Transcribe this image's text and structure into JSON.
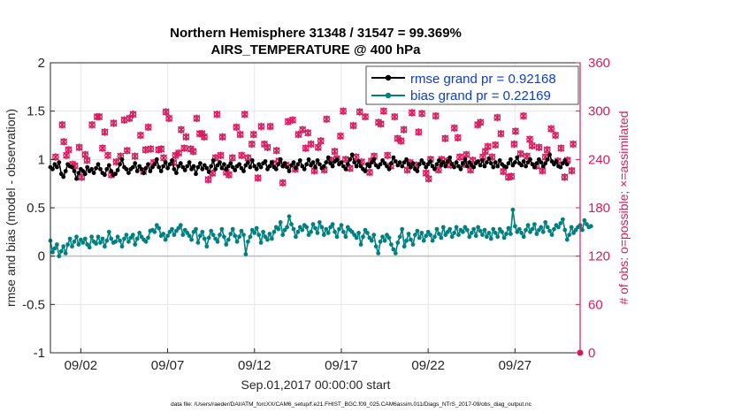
{
  "chart_data": {
    "type": "line",
    "title_line1": "Northern Hemisphere 31348 / 31547 = 99.369%",
    "title_line2": "AIRS_TEMPERATURE @ 400 hPa",
    "ylabel_left": "rmse and bias (model - observation)",
    "ylabel_right": "# of obs: o=possible; ×=assimilated",
    "xlabel": "Sep.01,2017 00:00:00 start",
    "footer": "data file: /Users/raeder/DAI/ATM_forcXX/CAM6_setup/f.e21.FHIST_BGC.f09_025.CAM6assim.011/Diags_NTrS_2017-09/obs_diag_output.nc",
    "ylim_left": [
      -1,
      2
    ],
    "ylim_right": [
      0,
      360
    ],
    "xlim": [
      0.25,
      30.75
    ],
    "left_ticks": [
      "-1",
      "-0.5",
      "0",
      "0.5",
      "1",
      "1.5",
      "2"
    ],
    "right_ticks": [
      "0",
      "60",
      "120",
      "180",
      "240",
      "300",
      "360"
    ],
    "x_ticks": [
      {
        "x": 2,
        "label": "09/02"
      },
      {
        "x": 7,
        "label": "09/07"
      },
      {
        "x": 12,
        "label": "09/12"
      },
      {
        "x": 17,
        "label": "09/17"
      },
      {
        "x": 22,
        "label": "09/22"
      },
      {
        "x": 27,
        "label": "09/27"
      }
    ],
    "legend": [
      {
        "label": "rmse grand pr = 0.92168",
        "color": "#000000"
      },
      {
        "label": "bias grand pr = 0.22169",
        "color": "#008080"
      }
    ],
    "colors": {
      "rmse": "#000000",
      "bias": "#008080",
      "obs": "#d81b60",
      "zero": "#bbbbbb",
      "grid": "#e6e6e6",
      "legend_text": "#0a3cdc"
    },
    "t_start": 0.25,
    "t_step": 0.125,
    "rmse": [
      0.92,
      0.9,
      0.95,
      0.92,
      0.97,
      0.85,
      0.82,
      0.88,
      0.95,
      0.93,
      0.92,
      0.88,
      0.8,
      0.86,
      0.9,
      0.88,
      0.85,
      0.92,
      0.88,
      0.9,
      0.86,
      0.91,
      0.95,
      0.9,
      0.86,
      0.84,
      0.9,
      0.94,
      0.88,
      0.84,
      0.85,
      0.89,
      0.95,
      1.0,
      0.92,
      0.9,
      0.86,
      0.9,
      0.92,
      0.96,
      0.88,
      0.93,
      0.9,
      0.86,
      0.91,
      0.95,
      0.88,
      0.92,
      0.95,
      1.0,
      0.92,
      0.88,
      0.93,
      0.97,
      0.91,
      0.95,
      0.99,
      0.9,
      0.86,
      0.93,
      0.96,
      0.92,
      0.89,
      0.93,
      0.97,
      0.9,
      0.93,
      0.85,
      0.92,
      0.96,
      0.9,
      0.94,
      0.91,
      0.87,
      0.93,
      0.99,
      0.9,
      0.94,
      0.97,
      0.91,
      0.95,
      0.9,
      0.93,
      0.96,
      0.92,
      0.89,
      0.93,
      0.95,
      0.91,
      0.88,
      0.94,
      0.97,
      0.92,
      0.99,
      0.93,
      0.9,
      0.95,
      0.92,
      0.96,
      0.98,
      0.9,
      0.93,
      0.97,
      0.92,
      0.9,
      0.95,
      1.0,
      0.93,
      0.96,
      0.92,
      0.88,
      0.94,
      0.97,
      0.91,
      0.95,
      0.99,
      0.93,
      0.9,
      0.95,
      1.0,
      0.94,
      0.97,
      0.92,
      0.99,
      0.95,
      0.91,
      0.93,
      0.97,
      1.02,
      0.96,
      0.93,
      0.98,
      1.0,
      0.95,
      0.97,
      0.93,
      0.9,
      0.95,
      1.0,
      1.05,
      0.97,
      0.93,
      0.98,
      0.93,
      0.9,
      0.88,
      0.95,
      0.93,
      0.97,
      1.0,
      0.94,
      0.92,
      0.95,
      0.99,
      0.96,
      0.93,
      0.9,
      0.96,
      1.02,
      0.98,
      0.94,
      0.97,
      0.93,
      0.97,
      1.0,
      0.95,
      0.92,
      0.96,
      0.9,
      0.88,
      0.95,
      0.99,
      0.96,
      0.92,
      0.95,
      0.98,
      0.93,
      0.9,
      0.95,
      0.99,
      0.94,
      0.97,
      0.93,
      0.98,
      1.02,
      0.95,
      0.92,
      0.97,
      0.93,
      0.9,
      0.96,
      1.0,
      0.93,
      0.97,
      0.94,
      0.92,
      0.96,
      0.98,
      0.94,
      0.99,
      0.93,
      0.97,
      1.01,
      0.96,
      0.92,
      0.97,
      0.93,
      0.99,
      0.95,
      0.93,
      0.92,
      0.96,
      1.0,
      0.94,
      0.97,
      1.02,
      0.96,
      0.94,
      0.98,
      0.93,
      0.97,
      1.0,
      0.95,
      0.92,
      0.96,
      1.0,
      0.97,
      0.93,
      0.96,
      1.0,
      1.05,
      0.98,
      0.95,
      0.98,
      0.93,
      0.92,
      0.96,
      0.99,
      0.95
    ],
    "bias": [
      0.16,
      0.04,
      0.08,
      0.12,
      0.0,
      0.05,
      0.1,
      0.03,
      0.12,
      0.18,
      0.1,
      0.15,
      0.2,
      0.12,
      0.17,
      0.14,
      0.18,
      0.12,
      0.09,
      0.2,
      0.15,
      0.13,
      0.2,
      0.14,
      0.18,
      0.1,
      0.16,
      0.25,
      0.18,
      0.14,
      0.15,
      0.2,
      0.16,
      0.1,
      0.18,
      0.22,
      0.15,
      0.19,
      0.22,
      0.12,
      0.18,
      0.24,
      0.2,
      0.17,
      0.15,
      0.19,
      0.26,
      0.27,
      0.25,
      0.32,
      0.29,
      0.21,
      0.23,
      0.17,
      0.21,
      0.25,
      0.28,
      0.22,
      0.26,
      0.29,
      0.32,
      0.22,
      0.27,
      0.24,
      0.21,
      0.17,
      0.25,
      0.28,
      0.14,
      0.21,
      0.25,
      0.18,
      0.1,
      0.19,
      0.26,
      0.22,
      0.18,
      0.15,
      0.22,
      0.28,
      0.2,
      0.12,
      0.17,
      0.23,
      0.28,
      0.21,
      0.15,
      0.2,
      0.26,
      0.22,
      0.02,
      0.15,
      0.2,
      0.27,
      0.24,
      0.29,
      0.22,
      0.14,
      0.25,
      0.2,
      0.17,
      0.23,
      0.18,
      0.25,
      0.3,
      0.28,
      0.35,
      0.22,
      0.27,
      0.3,
      0.41,
      0.33,
      0.28,
      0.2,
      0.25,
      0.3,
      0.27,
      0.32,
      0.3,
      0.22,
      0.25,
      0.33,
      0.29,
      0.24,
      0.35,
      0.3,
      0.22,
      0.28,
      0.24,
      0.3,
      0.33,
      0.25,
      0.2,
      0.28,
      0.32,
      0.25,
      0.2,
      0.3,
      0.27,
      0.25,
      0.22,
      0.19,
      0.24,
      0.12,
      0.2,
      0.27,
      0.24,
      0.19,
      0.16,
      0.22,
      0.1,
      0.03,
      0.15,
      0.2,
      0.16,
      0.22,
      0.19,
      0.12,
      0.07,
      0.03,
      0.14,
      0.2,
      0.28,
      0.1,
      0.16,
      0.23,
      0.17,
      0.12,
      0.22,
      0.26,
      0.19,
      0.24,
      0.16,
      0.21,
      0.25,
      0.22,
      0.16,
      0.2,
      0.28,
      0.23,
      0.19,
      0.3,
      0.22,
      0.25,
      0.28,
      0.2,
      0.24,
      0.3,
      0.22,
      0.27,
      0.25,
      0.3,
      0.27,
      0.2,
      0.24,
      0.28,
      0.21,
      0.3,
      0.26,
      0.22,
      0.27,
      0.2,
      0.24,
      0.18,
      0.28,
      0.24,
      0.2,
      0.28,
      0.25,
      0.19,
      0.23,
      0.29,
      0.23,
      0.48,
      0.31,
      0.25,
      0.28,
      0.24,
      0.2,
      0.27,
      0.32,
      0.25,
      0.28,
      0.33,
      0.23,
      0.27,
      0.3,
      0.25,
      0.35,
      0.3,
      0.26,
      0.22,
      0.28,
      0.32,
      0.3,
      0.34,
      0.38,
      0.27,
      0.17,
      0.22,
      0.3,
      0.24,
      0.27,
      0.3,
      0.32,
      0.27,
      0.37,
      0.33,
      0.3,
      0.31
    ],
    "obs_x": [
      0.55,
      0.93,
      1.02,
      1.17,
      1.29,
      1.53,
      1.66,
      1.91,
      2.05,
      2.25,
      2.36,
      2.65,
      2.94,
      3.06,
      3.25,
      3.38,
      3.56,
      3.76,
      3.89,
      4.04,
      4.29,
      4.5,
      4.67,
      4.8,
      5.01,
      5.12,
      5.44,
      5.61,
      5.73,
      5.89,
      6.02,
      6.2,
      6.48,
      6.63,
      6.77,
      6.9,
      7.08,
      7.35,
      7.45,
      7.64,
      7.78,
      7.95,
      8.06,
      8.33,
      8.48,
      8.67,
      8.85,
      8.98,
      9.11,
      9.34,
      9.58,
      9.76,
      9.84,
      10.05,
      10.16,
      10.38,
      10.53,
      10.73,
      10.96,
      11.18,
      11.26,
      11.44,
      11.63,
      11.85,
      11.95,
      12.2,
      12.39,
      12.57,
      12.75,
      12.91,
      13.07,
      13.27,
      13.41,
      13.63,
      13.82,
      13.94,
      14.2,
      14.35,
      14.53,
      14.77,
      14.95,
      15.08,
      15.25,
      15.45,
      15.67,
      15.82,
      16.02,
      16.15,
      16.42,
      16.62,
      16.74,
      16.95,
      17.11,
      17.25,
      17.5,
      17.69,
      17.85,
      18.06,
      18.17,
      18.38,
      18.63,
      18.73,
      18.89,
      19.14,
      19.28,
      19.44,
      19.66,
      19.85,
      20.07,
      20.24,
      20.44,
      20.6,
      20.8,
      20.96,
      21.07,
      21.32,
      21.45,
      21.64,
      21.88,
      22.03,
      22.14,
      22.44,
      22.6,
      22.77,
      22.98,
      23.09,
      23.3,
      23.51,
      23.71,
      23.82,
      24.07,
      24.2,
      24.44,
      24.57,
      24.85,
      25.01,
      25.15,
      25.29,
      25.44,
      25.68,
      25.87,
      25.98,
      26.19,
      26.33,
      26.62,
      26.79,
      26.95,
      27.03,
      27.32,
      27.49,
      27.69,
      27.85,
      27.99,
      28.22,
      28.38,
      28.58,
      28.75,
      28.85,
      29.08,
      29.33,
      29.47,
      29.65,
      29.86,
      30.02,
      30.27,
      30.35
    ],
    "obs_n": [
      243,
      283,
      262,
      245,
      252,
      234,
      232,
      255,
      218,
      246,
      239,
      283,
      293,
      293,
      254,
      274,
      245,
      221,
      285,
      237,
      244,
      289,
      251,
      291,
      296,
      244,
      270,
      225,
      252,
      280,
      253,
      236,
      252,
      253,
      242,
      299,
      291,
      236,
      245,
      248,
      277,
      254,
      268,
      253,
      250,
      291,
      272,
      272,
      268,
      215,
      223,
      242,
      296,
      245,
      268,
      224,
      221,
      242,
      280,
      271,
      245,
      296,
      242,
      259,
      271,
      217,
      281,
      259,
      255,
      281,
      235,
      251,
      238,
      211,
      233,
      287,
      289,
      228,
      271,
      277,
      254,
      273,
      259,
      226,
      255,
      263,
      227,
      290,
      239,
      250,
      241,
      269,
      300,
      240,
      229,
      282,
      243,
      299,
      237,
      293,
      224,
      238,
      244,
      286,
      284,
      300,
      245,
      232,
      293,
      266,
      263,
      277,
      227,
      236,
      298,
      233,
      274,
      297,
      223,
      216,
      240,
      294,
      227,
      240,
      266,
      238,
      233,
      279,
      267,
      243,
      234,
      246,
      227,
      239,
      283,
      286,
      243,
      250,
      256,
      243,
      258,
      292,
      272,
      225,
      218,
      219,
      259,
      275,
      247,
      294,
      244,
      265,
      257,
      232,
      255,
      226,
      243,
      252,
      278,
      270,
      238,
      254,
      218,
      239,
      226,
      259
    ]
  }
}
